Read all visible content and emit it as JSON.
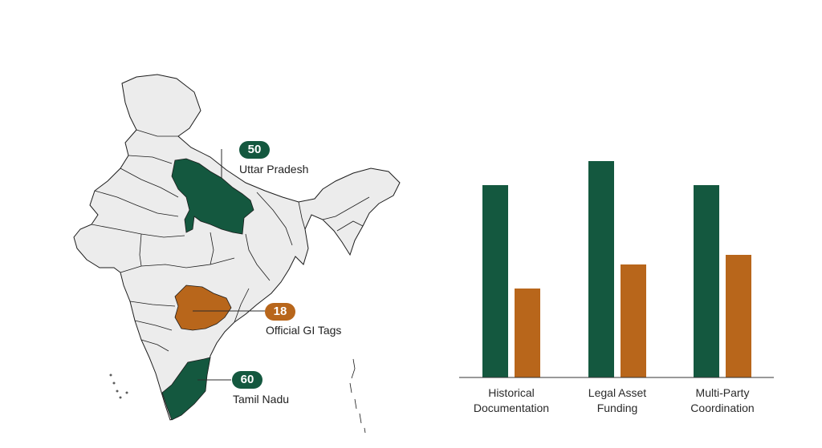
{
  "colors": {
    "green": "#14583f",
    "orange": "#b8661b",
    "map_fill": "#ececec",
    "map_stroke": "#1c1c1c",
    "axis": "#333333"
  },
  "map": {
    "callouts": [
      {
        "id": "up",
        "value": "50",
        "label": "Uttar Pradesh",
        "color": "green"
      },
      {
        "id": "tg",
        "value": "18",
        "label": "Official GI Tags",
        "color": "orange"
      },
      {
        "id": "tn",
        "value": "60",
        "label": "Tamil Nadu",
        "color": "green"
      }
    ]
  },
  "chart_data": {
    "type": "bar",
    "categories": [
      [
        "Historical",
        "Documentation"
      ],
      [
        "Legal Asset",
        "Funding"
      ],
      [
        "Multi-Party",
        "Coordination"
      ]
    ],
    "series": [
      {
        "color": "green",
        "values": [
          80,
          90,
          80
        ]
      },
      {
        "color": "orange",
        "values": [
          37,
          47,
          51
        ]
      }
    ],
    "ylim": [
      0,
      100
    ],
    "grid": false,
    "legend": "none"
  }
}
